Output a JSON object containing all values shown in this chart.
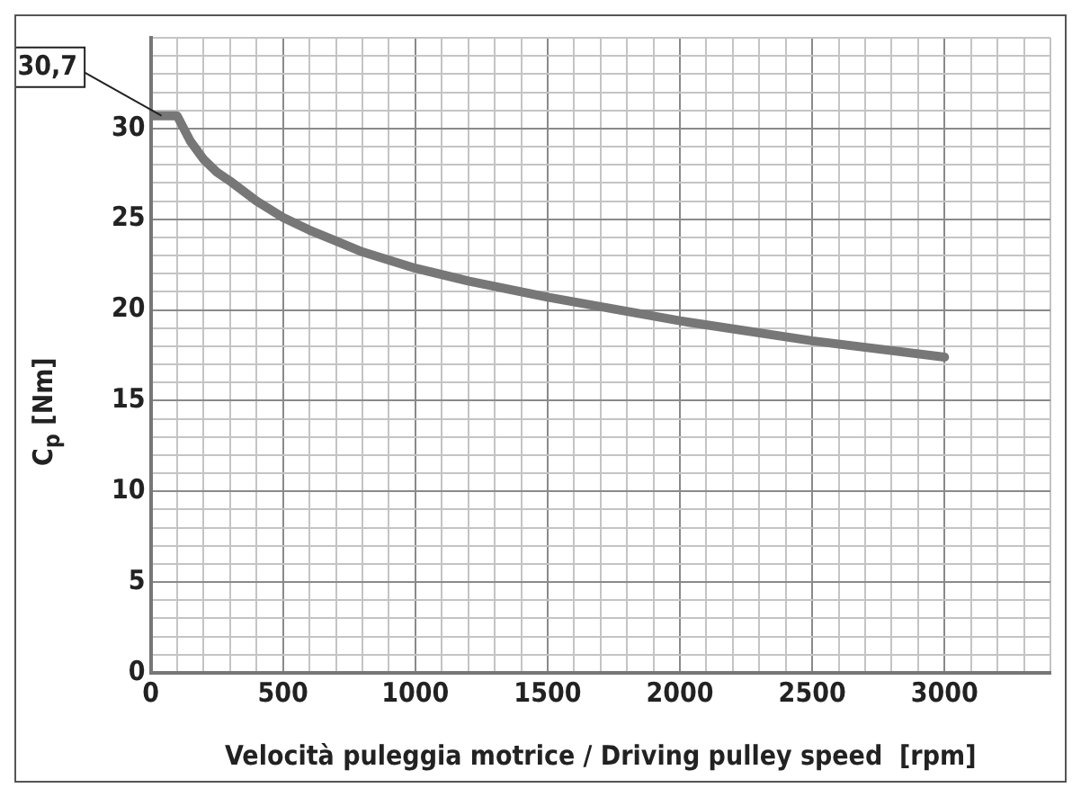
{
  "chart_data": {
    "type": "line",
    "xlabel": "Velocità puleggia motrice / Driving pulley speed  [rpm]",
    "ylabel": "C$_{p}$ [Nm]",
    "x": [
      0,
      100,
      150,
      200,
      250,
      300,
      400,
      500,
      600,
      700,
      800,
      1000,
      1200,
      1500,
      2000,
      2500,
      3000
    ],
    "series": [
      {
        "color": "#777777",
        "values": [
          30.7,
          30.7,
          29.3,
          28.3,
          27.6,
          27.1,
          26.0,
          25.1,
          24.4,
          23.8,
          23.2,
          22.3,
          21.6,
          20.7,
          19.4,
          18.3,
          17.4
        ]
      }
    ],
    "xlim": [
      0,
      3400
    ],
    "ylim": [
      0,
      35
    ],
    "xticks": [
      0,
      {
        "value": 100,
        "label": null
      },
      {
        "value": 200,
        "label": null
      },
      {
        "value": 300,
        "label": null
      },
      {
        "value": 400,
        "label": null
      },
      500,
      {
        "value": 600,
        "label": null
      },
      {
        "value": 700,
        "label": null
      },
      {
        "value": 800,
        "label": null
      },
      {
        "value": 900,
        "label": null
      },
      1000,
      {
        "value": 1100,
        "label": null
      },
      {
        "value": 1200,
        "label": null
      },
      {
        "value": 1300,
        "label": null
      },
      {
        "value": 1400,
        "label": null
      },
      1500,
      {
        "value": 1600,
        "label": null
      },
      {
        "value": 1700,
        "label": null
      },
      {
        "value": 1800,
        "label": null
      },
      {
        "value": 1900,
        "label": null
      },
      2000,
      {
        "value": 2100,
        "label": null
      },
      {
        "value": 2200,
        "label": null
      },
      {
        "value": 2300,
        "label": null
      },
      {
        "value": 2400,
        "label": null
      },
      2500,
      {
        "value": 2600,
        "label": null
      },
      {
        "value": 2700,
        "label": null
      },
      {
        "value": 2800,
        "label": null
      },
      {
        "value": 2900,
        "label": null
      },
      3000,
      {
        "value": 3100,
        "label": null
      },
      {
        "value": 3200,
        "label": null
      },
      {
        "value": 3300,
        "label": null
      },
      {
        "value": 3400,
        "label": null
      }
    ],
    "yticks": [
      0,
      {
        "value": 1,
        "label": null
      },
      {
        "value": 2,
        "label": null
      },
      {
        "value": 3,
        "label": null
      },
      {
        "value": 4,
        "label": null
      },
      5,
      {
        "value": 6,
        "label": null
      },
      {
        "value": 7,
        "label": null
      },
      {
        "value": 8,
        "label": null
      },
      {
        "value": 9,
        "label": null
      },
      10,
      {
        "value": 11,
        "label": null
      },
      {
        "value": 12,
        "label": null
      },
      {
        "value": 13,
        "label": null
      },
      {
        "value": 14,
        "label": null
      },
      15,
      {
        "value": 16,
        "label": null
      },
      {
        "value": 17,
        "label": null
      },
      {
        "value": 18,
        "label": null
      },
      {
        "value": 19,
        "label": null
      },
      20,
      {
        "value": 21,
        "label": null
      },
      {
        "value": 22,
        "label": null
      },
      {
        "value": 23,
        "label": null
      },
      {
        "value": 24,
        "label": null
      },
      25,
      {
        "value": 26,
        "label": null
      },
      {
        "value": 27,
        "label": null
      },
      {
        "value": 28,
        "label": null
      },
      {
        "value": 29,
        "label": null
      },
      30,
      {
        "value": 31,
        "label": null
      },
      {
        "value": 32,
        "label": null
      },
      {
        "value": 33,
        "label": null
      },
      {
        "value": 34,
        "label": null
      },
      {
        "value": 35,
        "label": null
      }
    ],
    "grid": true,
    "legend": false,
    "marker": "none",
    "line_style": "solid",
    "annotations": [
      {
        "text": "30,7",
        "x": 0,
        "y": 30.7
      }
    ]
  }
}
